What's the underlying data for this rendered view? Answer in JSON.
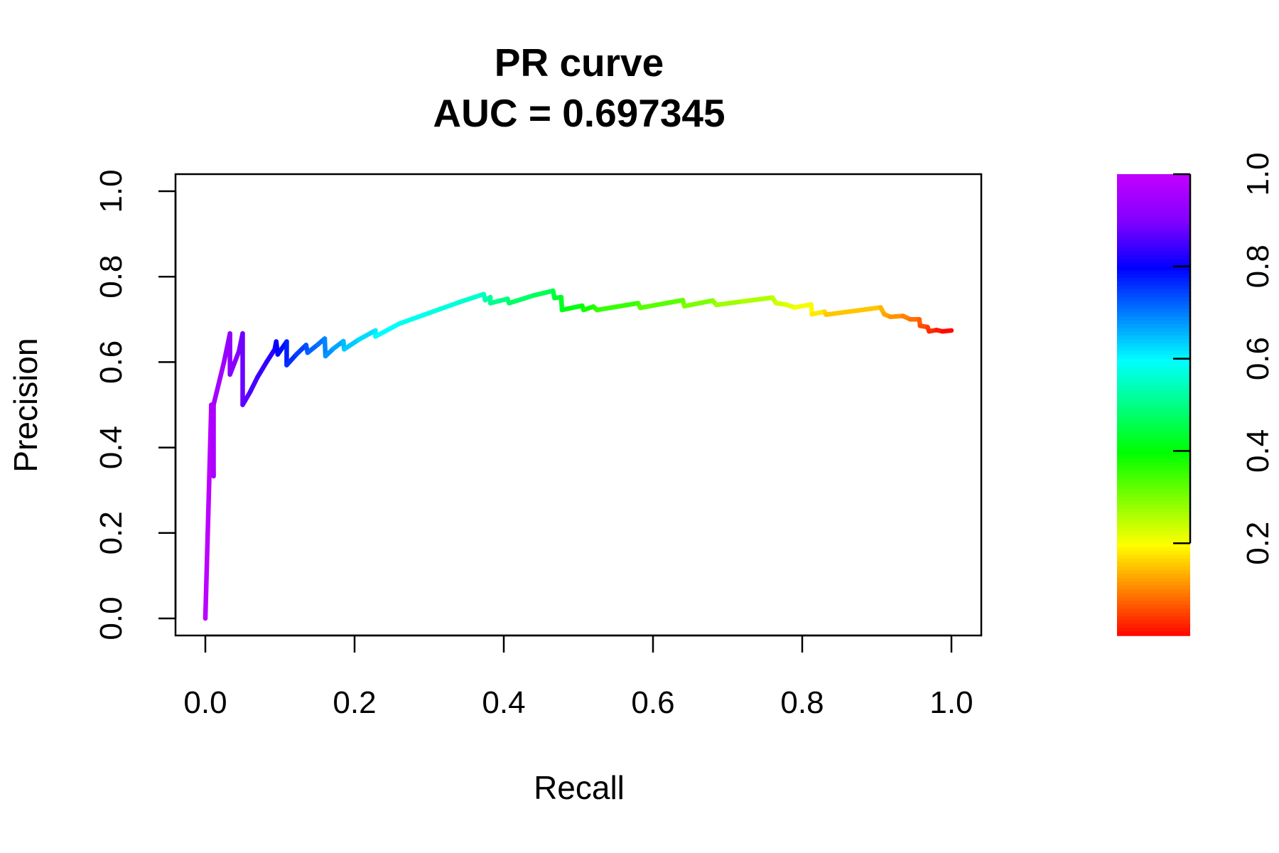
{
  "chart_data": {
    "type": "line",
    "title": "PR curve",
    "subtitle": "AUC = 0.697345",
    "xlabel": "Recall",
    "ylabel": "Precision",
    "xlim": [
      0,
      1
    ],
    "ylim": [
      0,
      1
    ],
    "xticks": [
      "0.0",
      "0.2",
      "0.4",
      "0.6",
      "0.8",
      "1.0"
    ],
    "yticks": [
      "0.0",
      "0.2",
      "0.4",
      "0.6",
      "0.8",
      "1.0"
    ],
    "colorbar": {
      "ticks": [
        "0.2",
        "0.4",
        "0.6",
        "0.8",
        "1.0"
      ],
      "colors": [
        "#ff0000",
        "#ff8000",
        "#ffff00",
        "#80ff00",
        "#00ff00",
        "#00ff80",
        "#00ffff",
        "#0080ff",
        "#0000ff",
        "#8000ff",
        "#c000ff"
      ]
    },
    "series": [
      {
        "points": [
          [
            0.0,
            0.0
          ],
          [
            0.008,
            0.5
          ],
          [
            0.011,
            0.333
          ],
          [
            0.011,
            0.5
          ],
          [
            0.025,
            0.6
          ],
          [
            0.033,
            0.667
          ],
          [
            0.033,
            0.571
          ],
          [
            0.045,
            0.625
          ],
          [
            0.05,
            0.667
          ],
          [
            0.05,
            0.5
          ],
          [
            0.06,
            0.53
          ],
          [
            0.07,
            0.565
          ],
          [
            0.082,
            0.6
          ],
          [
            0.093,
            0.63
          ],
          [
            0.095,
            0.648
          ],
          [
            0.097,
            0.618
          ],
          [
            0.109,
            0.648
          ],
          [
            0.109,
            0.593
          ],
          [
            0.122,
            0.618
          ],
          [
            0.135,
            0.64
          ],
          [
            0.137,
            0.622
          ],
          [
            0.15,
            0.64
          ],
          [
            0.16,
            0.655
          ],
          [
            0.161,
            0.614
          ],
          [
            0.172,
            0.632
          ],
          [
            0.185,
            0.649
          ],
          [
            0.186,
            0.63
          ],
          [
            0.205,
            0.652
          ],
          [
            0.228,
            0.674
          ],
          [
            0.228,
            0.66
          ],
          [
            0.26,
            0.69
          ],
          [
            0.3,
            0.715
          ],
          [
            0.34,
            0.74
          ],
          [
            0.373,
            0.759
          ],
          [
            0.375,
            0.745
          ],
          [
            0.382,
            0.752
          ],
          [
            0.382,
            0.738
          ],
          [
            0.405,
            0.748
          ],
          [
            0.407,
            0.738
          ],
          [
            0.44,
            0.756
          ],
          [
            0.466,
            0.767
          ],
          [
            0.468,
            0.75
          ],
          [
            0.477,
            0.752
          ],
          [
            0.478,
            0.722
          ],
          [
            0.505,
            0.732
          ],
          [
            0.507,
            0.722
          ],
          [
            0.52,
            0.73
          ],
          [
            0.525,
            0.722
          ],
          [
            0.58,
            0.738
          ],
          [
            0.583,
            0.727
          ],
          [
            0.64,
            0.745
          ],
          [
            0.642,
            0.731
          ],
          [
            0.68,
            0.744
          ],
          [
            0.685,
            0.734
          ],
          [
            0.72,
            0.742
          ],
          [
            0.76,
            0.751
          ],
          [
            0.765,
            0.738
          ],
          [
            0.777,
            0.735
          ],
          [
            0.79,
            0.728
          ],
          [
            0.812,
            0.735
          ],
          [
            0.813,
            0.712
          ],
          [
            0.83,
            0.718
          ],
          [
            0.832,
            0.711
          ],
          [
            0.905,
            0.728
          ],
          [
            0.91,
            0.712
          ],
          [
            0.918,
            0.706
          ],
          [
            0.935,
            0.708
          ],
          [
            0.945,
            0.7
          ],
          [
            0.957,
            0.7
          ],
          [
            0.958,
            0.685
          ],
          [
            0.968,
            0.682
          ],
          [
            0.97,
            0.672
          ],
          [
            0.98,
            0.675
          ],
          [
            0.988,
            0.672
          ],
          [
            1.0,
            0.674
          ]
        ]
      }
    ]
  }
}
